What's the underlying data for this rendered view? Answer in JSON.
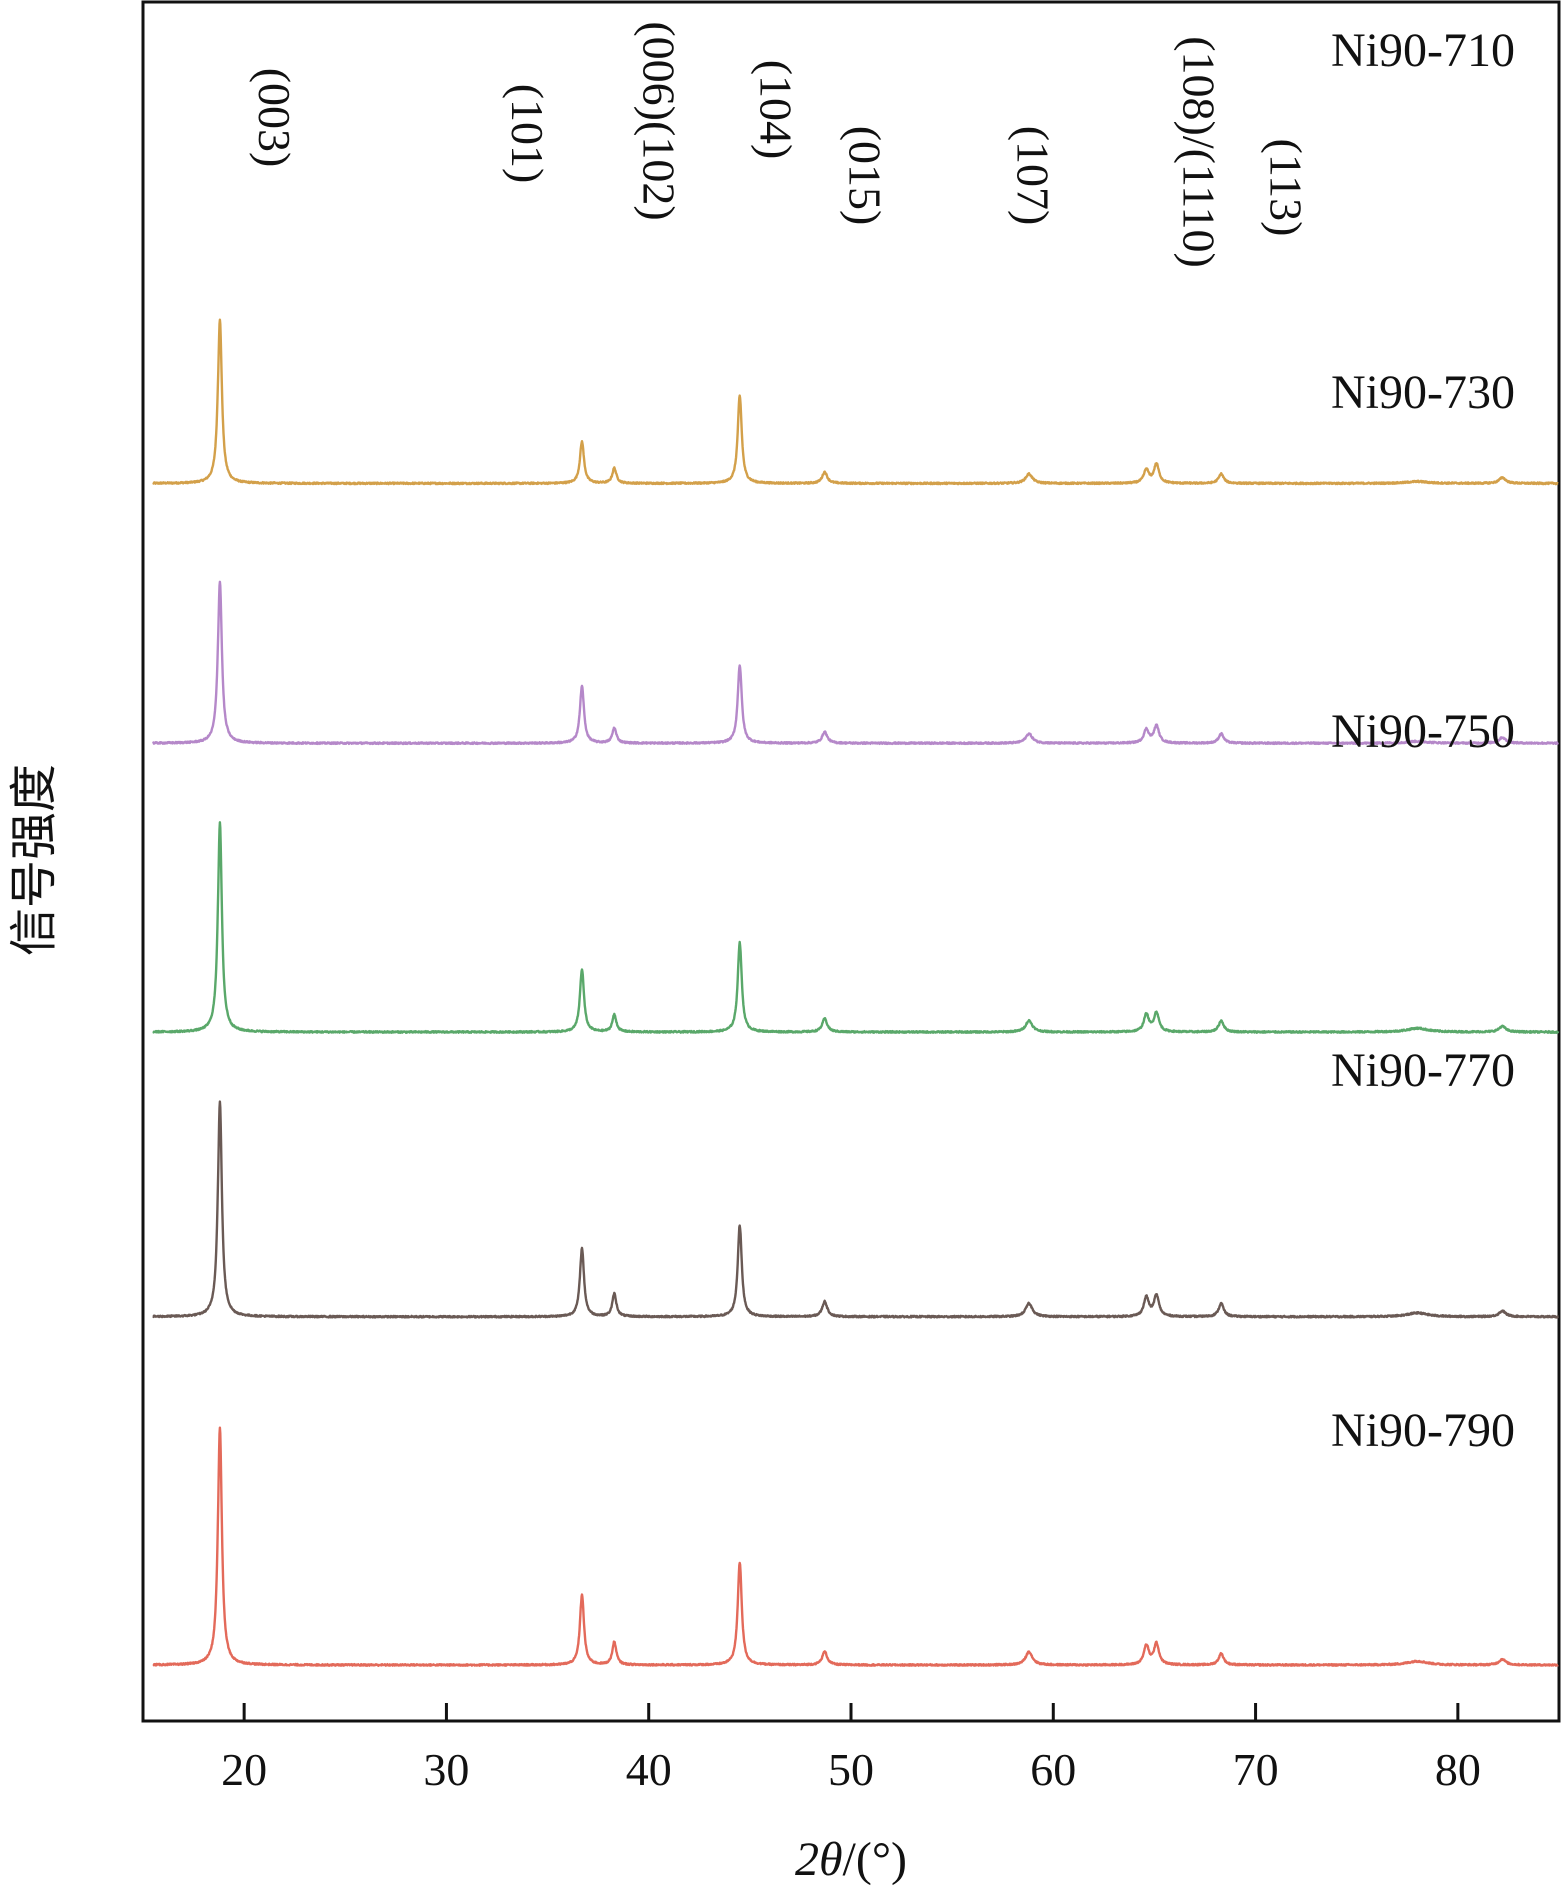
{
  "chart_data": {
    "type": "line",
    "subtype": "stacked-offset XRD patterns",
    "xlabel_parts": {
      "var": "2θ",
      "unit": "/(°)"
    },
    "ylabel": "信号强度",
    "xlim": [
      15,
      85
    ],
    "xticks": [
      20,
      30,
      40,
      50,
      60,
      70,
      80
    ],
    "y_ticks_shown": false,
    "grid": false,
    "peak_labels": [
      {
        "text": "(003)",
        "x": 21.5
      },
      {
        "text": "(101)",
        "x": 34.0
      },
      {
        "text": "(006)(102)",
        "x": 40.5
      },
      {
        "text": "(104)",
        "x": 46.3
      },
      {
        "text": "(015)",
        "x": 50.7
      },
      {
        "text": "(107)",
        "x": 59.0
      },
      {
        "text": "(108)/(1110)",
        "x": 67.2
      },
      {
        "text": "(113)",
        "x": 71.5
      }
    ],
    "peaks": [
      {
        "x": 18.8,
        "width": 0.12
      },
      {
        "x": 36.7,
        "width": 0.12
      },
      {
        "x": 38.3,
        "width": 0.12
      },
      {
        "x": 44.5,
        "width": 0.12
      },
      {
        "x": 48.7,
        "width": 0.15
      },
      {
        "x": 58.8,
        "width": 0.2
      },
      {
        "x": 64.6,
        "width": 0.15
      },
      {
        "x": 65.1,
        "width": 0.15
      },
      {
        "x": 68.3,
        "width": 0.15
      },
      {
        "x": 78.0,
        "width": 0.6
      },
      {
        "x": 82.2,
        "width": 0.2
      }
    ],
    "series": [
      {
        "name": "Ni90-710",
        "color": "#d3a04a",
        "baseline": 0.855,
        "intensities": [
          0.86,
          0.22,
          0.08,
          0.46,
          0.06,
          0.05,
          0.07,
          0.1,
          0.05,
          0.01,
          0.03
        ]
      },
      {
        "name": "Ni90-730",
        "color": "#b588c9",
        "baseline": 0.667,
        "intensities": [
          0.85,
          0.3,
          0.08,
          0.41,
          0.06,
          0.05,
          0.07,
          0.09,
          0.05,
          0.01,
          0.03
        ]
      },
      {
        "name": "Ni90-750",
        "color": "#5aa86a",
        "baseline": 0.458,
        "intensities": [
          1.1,
          0.33,
          0.09,
          0.47,
          0.07,
          0.06,
          0.09,
          0.1,
          0.06,
          0.02,
          0.03
        ]
      },
      {
        "name": "Ni90-770",
        "color": "#6a5a55",
        "baseline": 0.252,
        "intensities": [
          1.13,
          0.36,
          0.12,
          0.48,
          0.08,
          0.07,
          0.1,
          0.11,
          0.07,
          0.02,
          0.03
        ]
      },
      {
        "name": "Ni90-790",
        "color": "#e36a5a",
        "baseline": 0.0,
        "intensities": [
          1.25,
          0.37,
          0.12,
          0.54,
          0.07,
          0.07,
          0.1,
          0.11,
          0.06,
          0.02,
          0.03
        ]
      }
    ]
  }
}
